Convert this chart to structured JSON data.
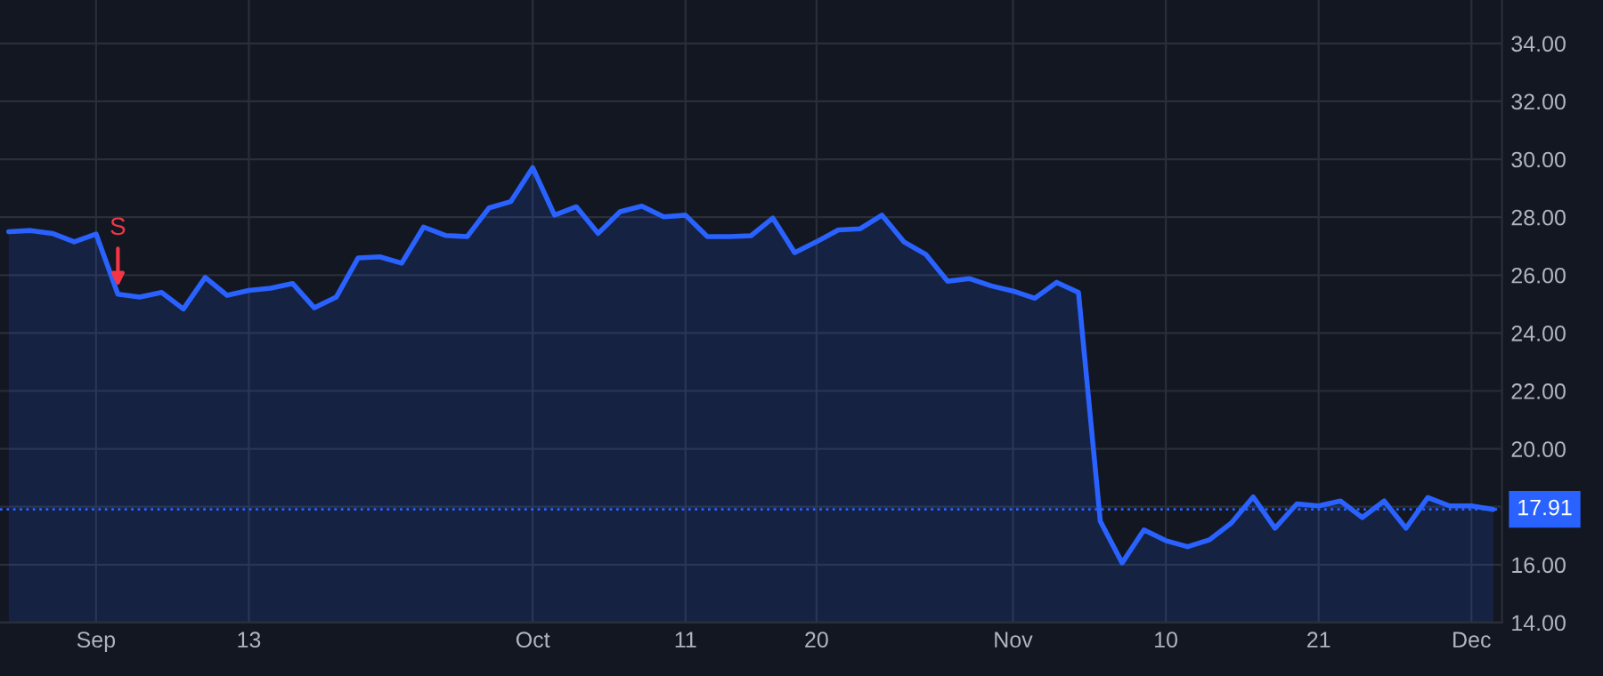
{
  "chart_data": {
    "type": "area",
    "categories": [
      null,
      null,
      null,
      null,
      "Sep",
      null,
      null,
      null,
      null,
      null,
      null,
      "13",
      null,
      null,
      null,
      null,
      null,
      null,
      null,
      null,
      null,
      null,
      null,
      null,
      "Oct",
      null,
      null,
      null,
      null,
      null,
      null,
      "11",
      null,
      null,
      null,
      null,
      null,
      "20",
      null,
      null,
      null,
      null,
      null,
      null,
      null,
      null,
      "Nov",
      null,
      null,
      null,
      null,
      null,
      null,
      "10",
      null,
      null,
      null,
      null,
      null,
      null,
      "21",
      null,
      null,
      null,
      null,
      null,
      null,
      "Dec",
      null
    ],
    "series": [
      {
        "color": "#2962ff",
        "values": [
          27.5,
          27.54,
          27.44,
          27.15,
          27.42,
          25.34,
          25.24,
          25.4,
          24.83,
          25.92,
          25.3,
          25.47,
          25.55,
          25.71,
          24.87,
          25.24,
          26.59,
          26.63,
          26.41,
          27.66,
          27.37,
          27.33,
          28.32,
          28.54,
          29.71,
          28.07,
          28.36,
          27.44,
          28.19,
          28.38,
          28.01,
          28.07,
          27.33,
          27.33,
          27.36,
          27.97,
          26.78,
          27.15,
          27.56,
          27.6,
          28.07,
          27.15,
          26.72,
          25.79,
          25.88,
          25.63,
          25.45,
          25.2,
          25.75,
          25.4,
          17.5,
          16.06,
          17.2,
          16.83,
          16.62,
          16.86,
          17.44,
          18.34,
          17.26,
          18.1,
          18.03,
          18.2,
          17.63,
          18.2,
          17.26,
          18.32,
          18.03,
          18.03,
          17.91
        ]
      }
    ],
    "ylim": [
      14,
      35.5
    ],
    "yticks": [
      {
        "value": 14,
        "label": "14.00"
      },
      {
        "value": 16,
        "label": "16.00"
      },
      {
        "value": 18,
        "label": null
      },
      {
        "value": 20,
        "label": "20.00"
      },
      {
        "value": 22,
        "label": "22.00"
      },
      {
        "value": 24,
        "label": "24.00"
      },
      {
        "value": 26,
        "label": "26.00"
      },
      {
        "value": 28,
        "label": "28.00"
      },
      {
        "value": 30,
        "label": "30.00"
      },
      {
        "value": 32,
        "label": "32.00"
      },
      {
        "value": 34,
        "label": "34.00"
      }
    ],
    "ref_lines": [
      {
        "axis": "y",
        "value": 17.91,
        "label": "17.91",
        "color": "#2962ff",
        "line_style": "dotted"
      }
    ],
    "annotations": [
      {
        "text": "S",
        "y": 25.34
      }
    ],
    "grid": true,
    "marker": "none",
    "line_style": "solid",
    "legend": false
  }
}
